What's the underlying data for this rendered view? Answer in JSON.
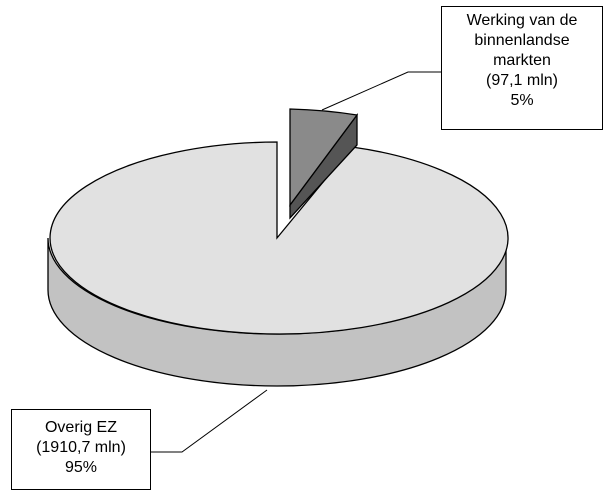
{
  "chart_data": {
    "type": "pie",
    "style": "3d-exploded",
    "slices": [
      {
        "label_lines": [
          "Overig EZ",
          "(1910,7 mln)",
          "95%"
        ],
        "value": 1910.7,
        "percent": 95,
        "color": "#e1e1e1",
        "side_color": "#c2c2c2"
      },
      {
        "label_lines": [
          "Werking van de",
          "binnenlandse",
          "markten",
          "(97,1 mln)",
          "5%"
        ],
        "value": 97.1,
        "percent": 5,
        "color": "#8a8a8a",
        "side_color": "#555555",
        "exploded": true
      }
    ]
  }
}
